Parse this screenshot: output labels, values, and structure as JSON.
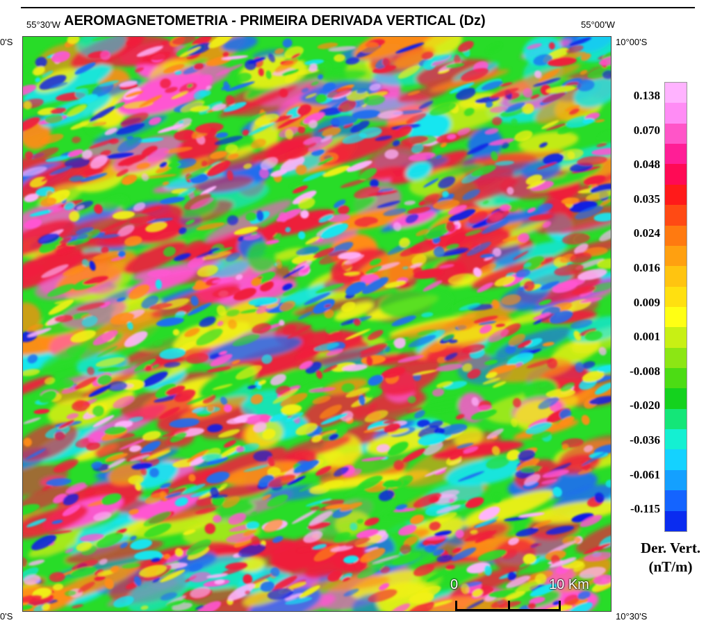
{
  "title": "AEROMAGNETOMETRIA - PRIMEIRA DERIVADA VERTICAL (Dz)",
  "coordinates": {
    "top_left_lon": "55°30'W",
    "top_right_lon": "55°00'W",
    "left_top_lat": "0'S",
    "right_top_lat": "10°00'S",
    "left_bottom_lat": "0'S",
    "right_bottom_lat": "10°30'S"
  },
  "scale_bar": {
    "start_label": "0",
    "end_label": "10 Km"
  },
  "legend": {
    "ticks": [
      "0.138",
      "0.070",
      "0.048",
      "0.035",
      "0.024",
      "0.016",
      "0.009",
      "0.001",
      "-0.008",
      "-0.020",
      "-0.036",
      "-0.061",
      "-0.115"
    ],
    "units_line1": "Der. Vert.",
    "units_line2": "(nT/m)",
    "colors": [
      "#ffb3ff",
      "#ff8cf5",
      "#ff55c8",
      "#ff1e96",
      "#ff0a55",
      "#ff1a1a",
      "#ff4a14",
      "#ff7a10",
      "#ffa010",
      "#ffc410",
      "#ffe010",
      "#ffff14",
      "#c8f014",
      "#8ce614",
      "#4cdc14",
      "#14d21e",
      "#14e678",
      "#14f0d2",
      "#14d2ff",
      "#14a0ff",
      "#1464ff",
      "#0a2cf0"
    ]
  },
  "map": {
    "palette": {
      "magenta": "#ff55d2",
      "red": "#f01e3c",
      "orange": "#ff8c14",
      "yellow": "#f0f014",
      "green": "#28dc28",
      "cyan": "#14e6f0",
      "blue": "#1e6ef0",
      "deep_blue": "#0a1ee6",
      "pink": "#ffb4ff"
    }
  }
}
